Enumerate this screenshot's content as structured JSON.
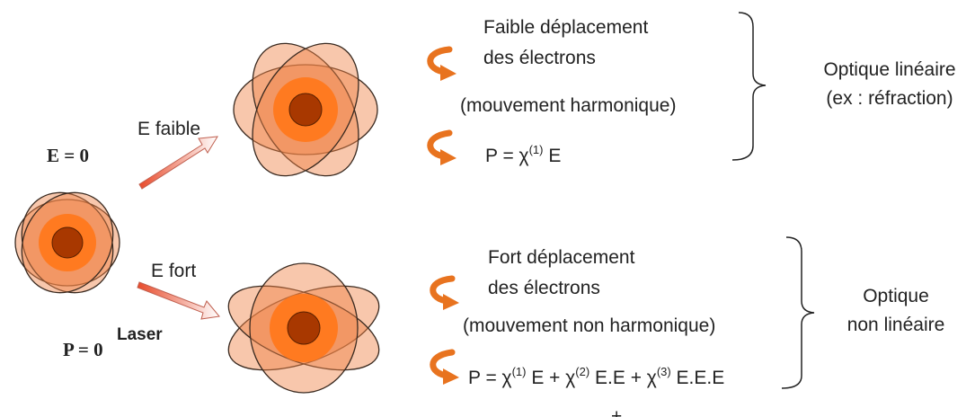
{
  "left": {
    "e_zero": "E = 0",
    "p_zero": "P = 0",
    "laser": "Laser"
  },
  "arrows": {
    "weak": "E faible",
    "strong": "E fort"
  },
  "weak": {
    "line1": "Faible déplacement",
    "line2": "des électrons",
    "motion": "(mouvement harmonique)",
    "formula": [
      "P = χ",
      "(1)",
      " E"
    ],
    "result": [
      "Optique linéaire",
      "(ex : réfraction)"
    ]
  },
  "strong": {
    "line1": "Fort déplacement",
    "line2": "des électrons",
    "motion": "(mouvement non harmonique)",
    "formula": [
      "P = χ",
      "(1)",
      " E + χ",
      "(2)",
      " E.E + χ",
      "(3)",
      " E.E.E"
    ],
    "formula_cont": "+ ...",
    "result": [
      "Optique",
      "non linéaire"
    ]
  }
}
